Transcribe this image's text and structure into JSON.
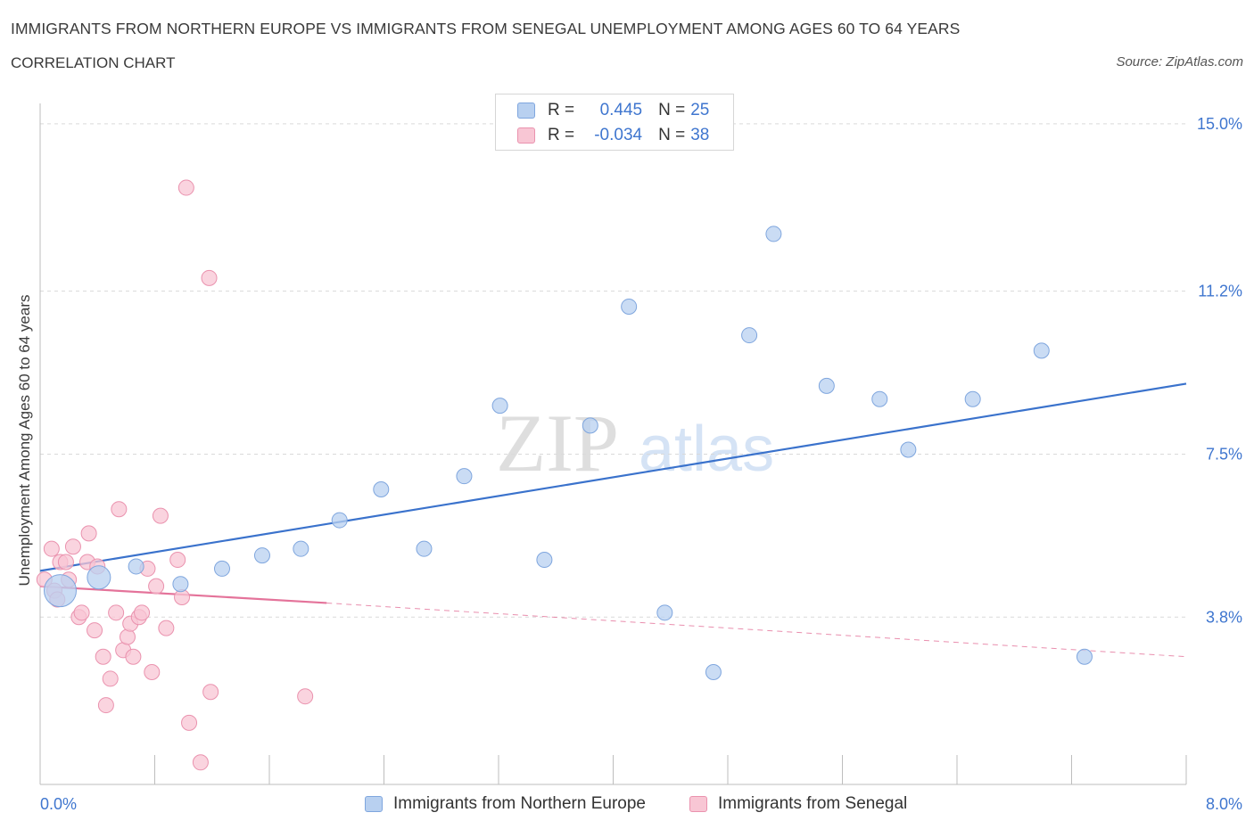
{
  "header": {
    "title": "IMMIGRANTS FROM NORTHERN EUROPE VS IMMIGRANTS FROM SENEGAL UNEMPLOYMENT AMONG AGES 60 TO 64 YEARS",
    "subtitle": "CORRELATION CHART",
    "source": "Source: ZipAtlas.com"
  },
  "watermark": {
    "part1": "ZIP",
    "part2": "atlas"
  },
  "colors": {
    "blue_fill": "#b8d0f0",
    "blue_stroke": "#7fa6de",
    "blue_line": "#3a72cc",
    "pink_fill": "#f8c6d4",
    "pink_stroke": "#ea92ae",
    "pink_line": "#e4739a",
    "tick_text": "#3f76cf"
  },
  "stats_legend": {
    "rows": [
      {
        "series": "Immigrants from Northern Europe",
        "r_label": "R =",
        "r_value": "0.445",
        "n_label": "N =",
        "n_value": "25",
        "color": "#b8d0f0"
      },
      {
        "series": "Immigrants from Senegal",
        "r_label": "R =",
        "r_value": "-0.034",
        "n_label": "N =",
        "n_value": "38",
        "color": "#f8c6d4"
      }
    ]
  },
  "chart_data": {
    "type": "scatter",
    "title": "IMMIGRANTS FROM NORTHERN EUROPE VS IMMIGRANTS FROM SENEGAL UNEMPLOYMENT AMONG AGES 60 TO 64 YEARS",
    "subtitle": "CORRELATION CHART",
    "xlabel": "",
    "ylabel": "Unemployment Among Ages 60 to 64 years",
    "xlim": [
      0,
      8
    ],
    "ylim": [
      0,
      15
    ],
    "x_tick_labels": [
      "0.0%",
      "8.0%"
    ],
    "y_ticks": [
      3.8,
      7.5,
      11.2,
      15.0
    ],
    "y_tick_labels": [
      "3.8%",
      "7.5%",
      "11.2%",
      "15.0%"
    ],
    "grid": "horizontal dashed",
    "legend_position": "bottom-center",
    "series": [
      {
        "name": "Immigrants from Northern Europe",
        "color": "#b8d0f0",
        "R": 0.445,
        "N": 25,
        "points": [
          {
            "x": 0.14,
            "y": 4.4,
            "size": "large"
          },
          {
            "x": 0.41,
            "y": 4.7,
            "size": "medium"
          },
          {
            "x": 0.67,
            "y": 4.95
          },
          {
            "x": 0.98,
            "y": 4.55
          },
          {
            "x": 1.27,
            "y": 4.9
          },
          {
            "x": 1.55,
            "y": 5.2
          },
          {
            "x": 1.82,
            "y": 5.35
          },
          {
            "x": 2.09,
            "y": 6.0
          },
          {
            "x": 2.38,
            "y": 6.7
          },
          {
            "x": 2.68,
            "y": 5.35
          },
          {
            "x": 2.96,
            "y": 7.0
          },
          {
            "x": 3.21,
            "y": 8.6
          },
          {
            "x": 3.52,
            "y": 5.1
          },
          {
            "x": 3.84,
            "y": 8.15
          },
          {
            "x": 4.11,
            "y": 10.85
          },
          {
            "x": 4.36,
            "y": 3.9
          },
          {
            "x": 4.7,
            "y": 2.55
          },
          {
            "x": 4.95,
            "y": 10.2
          },
          {
            "x": 5.12,
            "y": 12.5
          },
          {
            "x": 5.49,
            "y": 9.05
          },
          {
            "x": 5.86,
            "y": 8.75
          },
          {
            "x": 6.06,
            "y": 7.6
          },
          {
            "x": 6.51,
            "y": 8.75
          },
          {
            "x": 6.99,
            "y": 9.85
          },
          {
            "x": 7.29,
            "y": 2.9
          }
        ],
        "trend": {
          "x0": 0,
          "y0": 4.85,
          "x1": 8,
          "y1": 9.1
        }
      },
      {
        "name": "Immigrants from Senegal",
        "color": "#f8c6d4",
        "R": -0.034,
        "N": 38,
        "points": [
          {
            "x": 0.03,
            "y": 4.65
          },
          {
            "x": 0.1,
            "y": 4.4
          },
          {
            "x": 0.08,
            "y": 5.35
          },
          {
            "x": 0.12,
            "y": 4.2
          },
          {
            "x": 0.14,
            "y": 5.05
          },
          {
            "x": 0.18,
            "y": 5.05
          },
          {
            "x": 0.2,
            "y": 4.65
          },
          {
            "x": 0.23,
            "y": 5.4
          },
          {
            "x": 0.27,
            "y": 3.8
          },
          {
            "x": 0.29,
            "y": 3.9
          },
          {
            "x": 0.34,
            "y": 5.7
          },
          {
            "x": 0.33,
            "y": 5.05
          },
          {
            "x": 0.38,
            "y": 3.5
          },
          {
            "x": 0.4,
            "y": 4.95
          },
          {
            "x": 0.44,
            "y": 2.9
          },
          {
            "x": 0.46,
            "y": 1.8
          },
          {
            "x": 0.49,
            "y": 2.4
          },
          {
            "x": 0.53,
            "y": 3.9
          },
          {
            "x": 0.55,
            "y": 6.25
          },
          {
            "x": 0.58,
            "y": 3.05
          },
          {
            "x": 0.61,
            "y": 3.35
          },
          {
            "x": 0.63,
            "y": 3.65
          },
          {
            "x": 0.65,
            "y": 2.9
          },
          {
            "x": 0.69,
            "y": 3.8
          },
          {
            "x": 0.71,
            "y": 3.9
          },
          {
            "x": 0.75,
            "y": 4.9
          },
          {
            "x": 0.78,
            "y": 2.55
          },
          {
            "x": 0.81,
            "y": 4.5
          },
          {
            "x": 0.84,
            "y": 6.1
          },
          {
            "x": 0.88,
            "y": 3.55
          },
          {
            "x": 0.96,
            "y": 5.1
          },
          {
            "x": 0.99,
            "y": 4.25
          },
          {
            "x": 1.02,
            "y": 13.55
          },
          {
            "x": 1.04,
            "y": 1.4
          },
          {
            "x": 1.12,
            "y": 0.5
          },
          {
            "x": 1.19,
            "y": 2.1
          },
          {
            "x": 1.18,
            "y": 11.5
          },
          {
            "x": 1.85,
            "y": 2.0
          }
        ],
        "trend": {
          "x0": 0,
          "y0": 4.5,
          "x1": 2.0,
          "y1": 4.12
        },
        "trend_dashed": {
          "x0": 2.0,
          "y0": 4.12,
          "x1": 8,
          "y1": 2.9
        }
      }
    ]
  }
}
